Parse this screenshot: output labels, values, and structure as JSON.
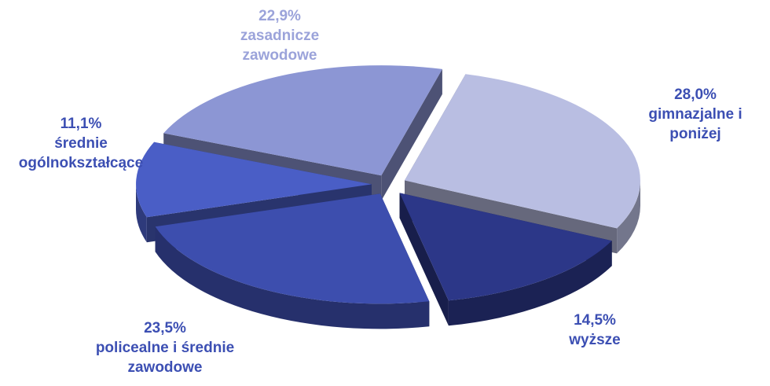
{
  "chart_data": {
    "type": "pie",
    "categories": [
      "gimnazjalne i poniżej",
      "wyższe",
      "policealne i średnie zawodowe",
      "średnie ogólnokształcące",
      "zasadnicze zawodowe"
    ],
    "values": [
      28.0,
      14.5,
      23.5,
      11.1,
      22.9
    ],
    "value_labels": [
      "28,0%",
      "14,5%",
      "23,5%",
      "11,1%",
      "22,9%"
    ],
    "colors": [
      "#b9bee2",
      "#2c3788",
      "#3d4eae",
      "#4a5ec6",
      "#8c96d4"
    ]
  }
}
